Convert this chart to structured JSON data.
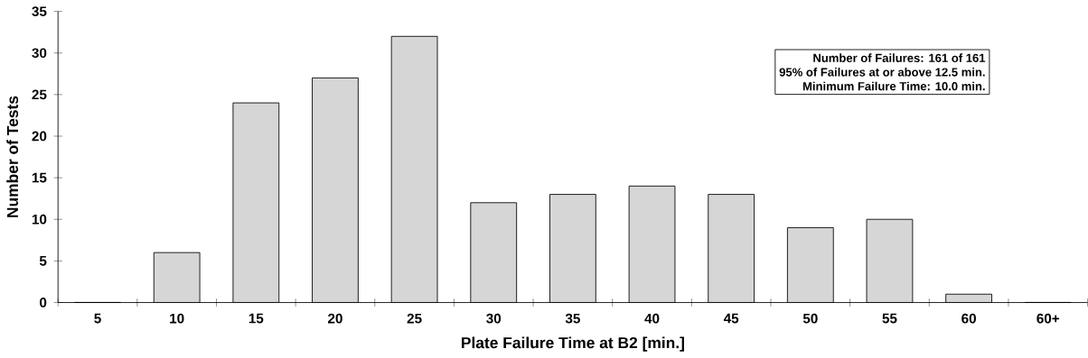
{
  "chart_data": {
    "type": "bar",
    "xlabel": "Plate Failure Time at B2 [min.]",
    "ylabel": "Number of Tests",
    "categories": [
      "5",
      "10",
      "15",
      "20",
      "25",
      "30",
      "35",
      "40",
      "45",
      "50",
      "55",
      "60",
      "60+"
    ],
    "values": [
      0,
      6,
      24,
      27,
      32,
      12,
      13,
      14,
      13,
      9,
      10,
      1,
      0
    ],
    "color": "#d6d6d6",
    "ylim": [
      0,
      35
    ],
    "yticks": [
      0,
      5,
      10,
      15,
      20,
      25,
      30,
      35
    ],
    "annotations": [
      "Number of Failures: 161 of 161",
      "95% of Failures at or above 12.5 min.",
      "Minimum Failure Time: 10.0 min."
    ],
    "grid": false
  }
}
